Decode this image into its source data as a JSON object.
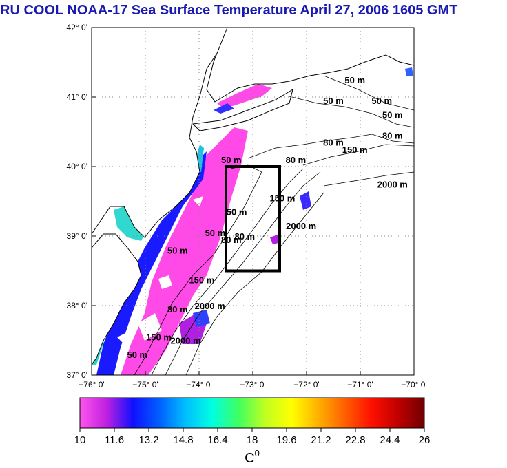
{
  "title": "RU COOL  NOAA-17 Sea Surface Temperature April 27, 2006 1605 GMT",
  "map": {
    "lon_range": [
      -76,
      -70
    ],
    "lat_range": [
      37,
      42
    ],
    "lon_ticks": [
      {
        "value": -76,
        "label": "−76° 0'"
      },
      {
        "value": -75,
        "label": "−75° 0'"
      },
      {
        "value": -74,
        "label": "−74° 0'"
      },
      {
        "value": -73,
        "label": "−73° 0'"
      },
      {
        "value": -72,
        "label": "−72° 0'"
      },
      {
        "value": -71,
        "label": "−71° 0'"
      },
      {
        "value": -70,
        "label": "−70° 0'"
      }
    ],
    "lat_ticks": [
      {
        "value": 42,
        "label": "42° 0'"
      },
      {
        "value": 41,
        "label": "41° 0'"
      },
      {
        "value": 40,
        "label": "40° 0'"
      },
      {
        "value": 39,
        "label": "39° 0'"
      },
      {
        "value": 38,
        "label": "38° 0'"
      },
      {
        "value": 37,
        "label": "37° 0'"
      }
    ],
    "study_box": {
      "lon": [
        -73.5,
        -72.5
      ],
      "lat": [
        38.5,
        40.0
      ]
    },
    "contour_labels": [
      {
        "text": "50 m",
        "lon": -71.1,
        "lat": 41.2
      },
      {
        "text": "50 m",
        "lon": -71.5,
        "lat": 40.9
      },
      {
        "text": "50 m",
        "lon": -70.6,
        "lat": 40.9
      },
      {
        "text": "50 m",
        "lon": -70.4,
        "lat": 40.7
      },
      {
        "text": "80 m",
        "lon": -70.4,
        "lat": 40.4
      },
      {
        "text": "80 m",
        "lon": -71.5,
        "lat": 40.3
      },
      {
        "text": "150 m",
        "lon": -71.1,
        "lat": 40.2
      },
      {
        "text": "50 m",
        "lon": -73.4,
        "lat": 40.05
      },
      {
        "text": "80 m",
        "lon": -72.2,
        "lat": 40.05
      },
      {
        "text": "2000 m",
        "lon": -70.4,
        "lat": 39.7
      },
      {
        "text": "150 m",
        "lon": -72.45,
        "lat": 39.5
      },
      {
        "text": "50 m",
        "lon": -73.3,
        "lat": 39.3
      },
      {
        "text": "2000 m",
        "lon": -72.1,
        "lat": 39.1
      },
      {
        "text": "50 m",
        "lon": -73.7,
        "lat": 39.0
      },
      {
        "text": "80 m",
        "lon": -73.15,
        "lat": 38.95
      },
      {
        "text": "80 m",
        "lon": -73.4,
        "lat": 38.9
      },
      {
        "text": "50 m",
        "lon": -74.4,
        "lat": 38.75
      },
      {
        "text": "150 m",
        "lon": -73.95,
        "lat": 38.32
      },
      {
        "text": "2000 m",
        "lon": -73.8,
        "lat": 37.95
      },
      {
        "text": "80 m",
        "lon": -74.4,
        "lat": 37.9
      },
      {
        "text": "2000 m",
        "lon": -74.25,
        "lat": 37.45
      },
      {
        "text": "150 m",
        "lon": -74.75,
        "lat": 37.5
      },
      {
        "text": "50 m",
        "lon": -75.15,
        "lat": 37.25
      }
    ]
  },
  "colorbar": {
    "min": 10,
    "max": 26,
    "tick_labels": [
      "10",
      "11.6",
      "13.2",
      "14.8",
      "16.4",
      "18",
      "19.6",
      "21.2",
      "22.8",
      "24.4",
      "26"
    ],
    "unit_label": "C",
    "unit_superscript": "0",
    "colors": [
      "#ff55ee",
      "#c020e0",
      "#1010ff",
      "#0060ff",
      "#00c0ff",
      "#00ffe0",
      "#40ff60",
      "#c0ff20",
      "#ffff00",
      "#ffb000",
      "#ff6000",
      "#ff1000",
      "#c00000",
      "#700000"
    ]
  },
  "colors": {
    "title": "#1a1ab0",
    "land": "#ffffff",
    "coast": "#000000",
    "box": "#000000"
  }
}
